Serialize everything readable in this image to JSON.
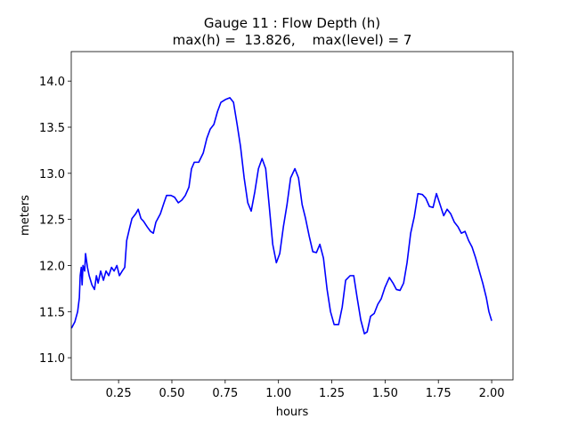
{
  "chart_data": {
    "type": "line",
    "title": "Gauge 11 : Flow Depth (h)",
    "subtitle": "max(h) =  13.826,    max(level) = 7",
    "xlabel": "hours",
    "ylabel": "meters",
    "xlim": [
      0.028,
      2.1
    ],
    "ylim": [
      10.76,
      14.32
    ],
    "xticks": [
      0.25,
      {
        "value": 0.5,
        "label": "0.50"
      },
      0.75,
      {
        "value": 1,
        "label": "1.00"
      },
      1.25,
      {
        "value": 1.5,
        "label": "1.50"
      },
      1.75,
      {
        "value": 2,
        "label": "2.00"
      }
    ],
    "yticks": [
      {
        "value": 11,
        "label": "11.0"
      },
      11.5,
      {
        "value": 12,
        "label": "12.0"
      },
      12.5,
      {
        "value": 13,
        "label": "13.0"
      },
      13.5,
      {
        "value": 14,
        "label": "14.0"
      }
    ],
    "color": "#0000ff",
    "x": [
      0.029,
      0.045,
      0.058,
      0.066,
      0.07,
      0.075,
      0.079,
      0.083,
      0.091,
      0.095,
      0.104,
      0.112,
      0.125,
      0.137,
      0.146,
      0.154,
      0.166,
      0.179,
      0.191,
      0.204,
      0.217,
      0.229,
      0.242,
      0.254,
      0.267,
      0.279,
      0.288,
      0.3,
      0.313,
      0.33,
      0.342,
      0.355,
      0.367,
      0.384,
      0.4,
      0.413,
      0.425,
      0.446,
      0.463,
      0.475,
      0.496,
      0.513,
      0.53,
      0.547,
      0.563,
      0.58,
      0.592,
      0.605,
      0.626,
      0.647,
      0.664,
      0.68,
      0.697,
      0.714,
      0.73,
      0.751,
      0.772,
      0.789,
      0.806,
      0.822,
      0.839,
      0.856,
      0.872,
      0.889,
      0.906,
      0.923,
      0.94,
      0.956,
      0.973,
      0.99,
      1.006,
      1.023,
      1.04,
      1.057,
      1.077,
      1.094,
      1.111,
      1.127,
      1.144,
      1.161,
      1.178,
      1.194,
      1.211,
      1.228,
      1.244,
      1.261,
      1.282,
      1.299,
      1.315,
      1.336,
      1.353,
      1.369,
      1.386,
      1.403,
      1.416,
      1.432,
      1.449,
      1.466,
      1.482,
      1.499,
      1.52,
      1.537,
      1.553,
      1.57,
      1.587,
      1.603,
      1.62,
      1.637,
      1.654,
      1.675,
      1.691,
      1.708,
      1.725,
      1.741,
      1.758,
      1.775,
      1.791,
      1.808,
      1.825,
      1.842,
      1.858,
      1.875,
      1.892,
      1.908,
      1.925,
      1.942,
      1.958,
      1.975,
      1.987,
      2.0
    ],
    "values": [
      11.32,
      11.39,
      11.5,
      11.65,
      11.89,
      11.98,
      11.79,
      12.0,
      11.94,
      12.13,
      11.98,
      11.89,
      11.79,
      11.74,
      11.89,
      11.81,
      11.94,
      11.84,
      11.94,
      11.89,
      11.98,
      11.94,
      12.0,
      11.89,
      11.94,
      11.98,
      12.27,
      12.39,
      12.51,
      12.56,
      12.61,
      12.51,
      12.48,
      12.42,
      12.37,
      12.35,
      12.47,
      12.56,
      12.68,
      12.76,
      12.76,
      12.74,
      12.68,
      12.71,
      12.76,
      12.85,
      13.05,
      13.12,
      13.12,
      13.22,
      13.38,
      13.48,
      13.53,
      13.67,
      13.77,
      13.8,
      13.82,
      13.77,
      13.53,
      13.29,
      12.95,
      12.68,
      12.59,
      12.8,
      13.05,
      13.16,
      13.05,
      12.66,
      12.23,
      12.03,
      12.13,
      12.42,
      12.66,
      12.95,
      13.05,
      12.95,
      12.66,
      12.51,
      12.32,
      12.15,
      12.14,
      12.23,
      12.08,
      11.74,
      11.5,
      11.36,
      11.36,
      11.55,
      11.84,
      11.89,
      11.89,
      11.65,
      11.41,
      11.26,
      11.28,
      11.45,
      11.48,
      11.58,
      11.64,
      11.76,
      11.87,
      11.81,
      11.74,
      11.73,
      11.81,
      12.03,
      12.35,
      12.53,
      12.78,
      12.77,
      12.73,
      12.64,
      12.63,
      12.78,
      12.66,
      12.54,
      12.61,
      12.56,
      12.47,
      12.42,
      12.35,
      12.37,
      12.27,
      12.2,
      12.08,
      11.94,
      11.81,
      11.65,
      11.5,
      11.4
    ]
  }
}
